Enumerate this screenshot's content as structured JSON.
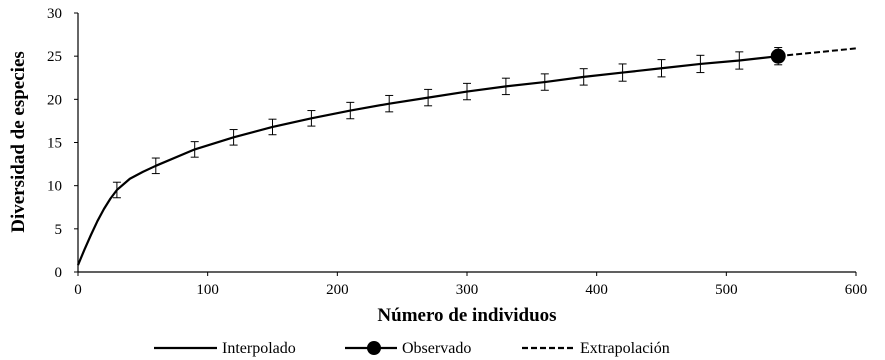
{
  "chart_data": {
    "type": "line",
    "xlabel": "Número de individuos",
    "ylabel": "Diversidad de especies",
    "xlim": [
      0,
      600
    ],
    "ylim": [
      0,
      30
    ],
    "x_ticks": [
      0,
      100,
      200,
      300,
      400,
      500,
      600
    ],
    "y_ticks": [
      0,
      5,
      10,
      15,
      20,
      25,
      30
    ],
    "grid": false,
    "legend_position": "bottom",
    "series": [
      {
        "name": "Interpolado",
        "style": "solid",
        "x": [
          0,
          5,
          10,
          15,
          20,
          25,
          30,
          40,
          50,
          60,
          90,
          120,
          150,
          180,
          210,
          240,
          270,
          300,
          330,
          360,
          390,
          420,
          450,
          480,
          510,
          540
        ],
        "y": [
          0.8,
          2.6,
          4.3,
          5.9,
          7.3,
          8.5,
          9.5,
          10.8,
          11.6,
          12.3,
          14.2,
          15.6,
          16.8,
          17.8,
          18.7,
          19.5,
          20.2,
          20.9,
          21.5,
          22.0,
          22.6,
          23.1,
          23.6,
          24.1,
          24.5,
          25.0
        ],
        "errors_x": [
          30,
          60,
          90,
          120,
          150,
          180,
          210,
          240,
          270,
          300,
          330,
          360,
          390,
          420,
          450,
          480,
          510,
          540
        ],
        "errors_y": [
          9.5,
          12.3,
          14.2,
          15.6,
          16.8,
          17.8,
          18.7,
          19.5,
          20.2,
          20.9,
          21.5,
          22.0,
          22.6,
          23.1,
          23.6,
          24.1,
          24.5,
          25.0
        ],
        "errors_half": [
          0.9,
          0.9,
          0.9,
          0.9,
          0.9,
          0.9,
          0.95,
          0.95,
          0.95,
          0.95,
          0.95,
          0.95,
          0.95,
          1.0,
          1.0,
          1.0,
          1.0,
          1.0
        ]
      },
      {
        "name": "Observado",
        "style": "marker",
        "x": [
          540
        ],
        "y": [
          25.0
        ]
      },
      {
        "name": "Extrapolación",
        "style": "dashed",
        "x": [
          540,
          560,
          580,
          600
        ],
        "y": [
          25.0,
          25.3,
          25.6,
          25.9
        ]
      }
    ]
  }
}
